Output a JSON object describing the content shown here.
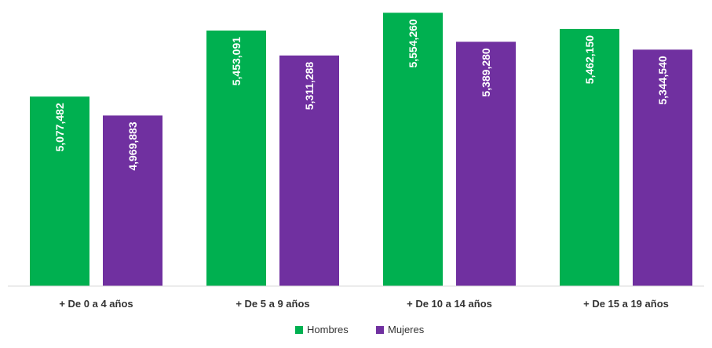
{
  "chart_data": {
    "type": "bar",
    "categories": [
      "+ De 0 a 4 años",
      "+ De 5 a 9 años",
      "+ De 10 a 14 años",
      "+ De 15 a 19 años"
    ],
    "series": [
      {
        "name": "Hombres",
        "values": [
          5077482,
          5453091,
          5554260,
          5462150
        ],
        "labels": [
          "5,077,482",
          "5,453,091",
          "5,554,260",
          "5,462,150"
        ],
        "color": "#00b050"
      },
      {
        "name": "Mujeres",
        "values": [
          4969883,
          5311288,
          5389280,
          5344540
        ],
        "labels": [
          "4,969,883",
          "5,311,288",
          "5,389,280",
          "5,344,540"
        ],
        "color": "#7030a0"
      }
    ],
    "title": "",
    "xlabel": "",
    "ylabel": "",
    "ylim": [
      4000000,
      5600000
    ],
    "grid": false,
    "legend": "bottom-center"
  }
}
